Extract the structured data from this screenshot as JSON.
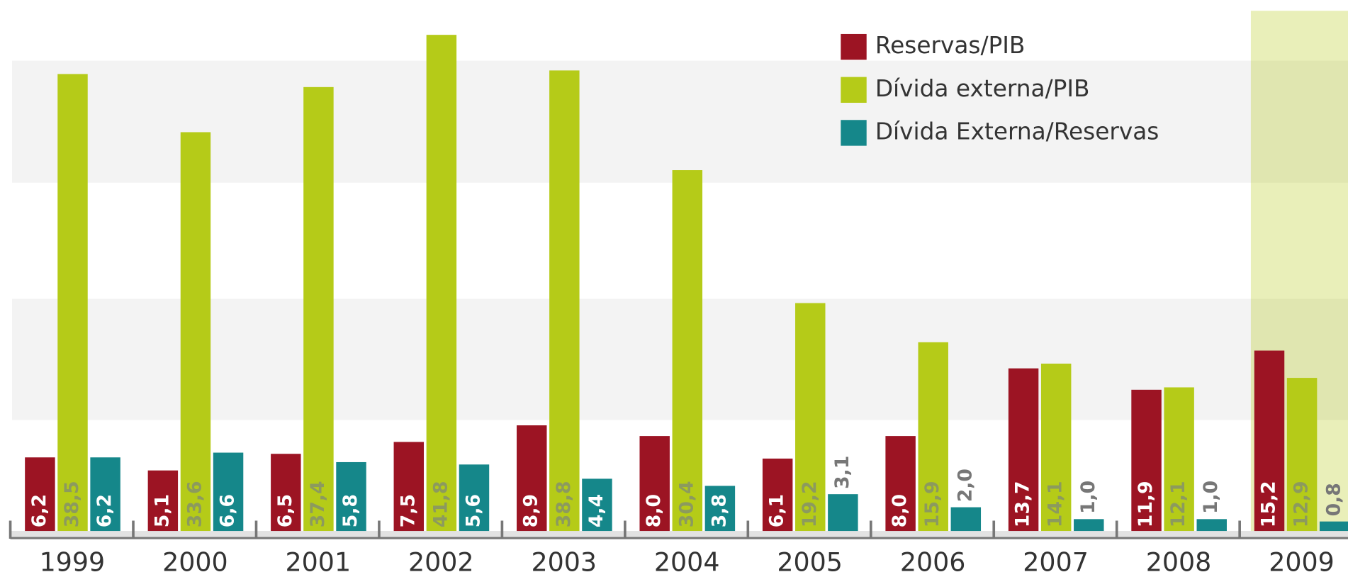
{
  "chart_data": {
    "type": "bar",
    "categories": [
      "1999",
      "2000",
      "2001",
      "2002",
      "2003",
      "2004",
      "2005",
      "2006",
      "2007",
      "2008",
      "2009"
    ],
    "series": [
      {
        "name": "Reservas/PIB",
        "color": "#9c1423",
        "values": [
          6.2,
          5.1,
          6.5,
          7.5,
          8.9,
          8.0,
          6.1,
          8.0,
          13.7,
          11.9,
          15.2
        ],
        "value_labels": [
          "6,2",
          "5,1",
          "6,5",
          "7,5",
          "8,9",
          "8,0",
          "6,1",
          "8,0",
          "13,7",
          "11,9",
          "15,2"
        ]
      },
      {
        "name": "Dívida externa/PIB",
        "color": "#b5cb18",
        "values": [
          38.5,
          33.6,
          37.4,
          41.8,
          38.8,
          30.4,
          19.2,
          15.9,
          14.1,
          12.1,
          12.9
        ],
        "value_labels": [
          "38,5",
          "33,6",
          "37,4",
          "41,8",
          "38,8",
          "30,4",
          "19,2",
          "15,9",
          "14,1",
          "12,1",
          "12,9"
        ]
      },
      {
        "name": "Dívida Externa/Reservas",
        "color": "#15878a",
        "values": [
          6.2,
          6.6,
          5.8,
          5.6,
          4.4,
          3.8,
          3.1,
          2.0,
          1.0,
          1.0,
          0.8
        ],
        "value_labels": [
          "6,2",
          "6,6",
          "5,8",
          "5,6",
          "4,4",
          "3,8",
          "3,1",
          "2,0",
          "1,0",
          "1,0",
          "0,8"
        ]
      }
    ],
    "legend": "top-right"
  }
}
